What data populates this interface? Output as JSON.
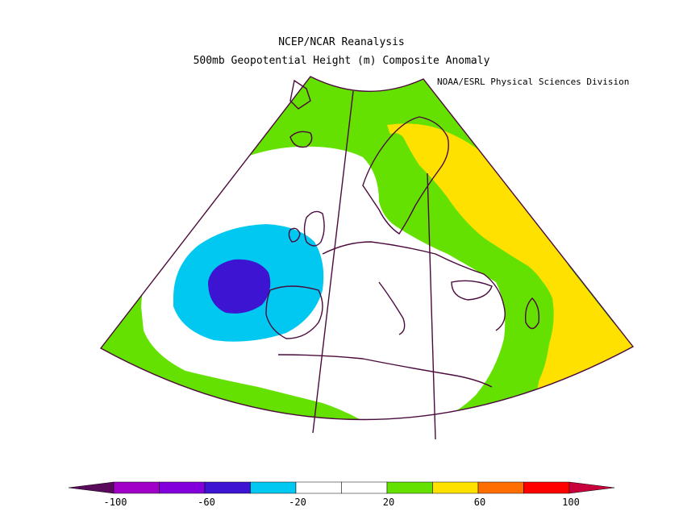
{
  "title": {
    "line1": "NCEP/NCAR Reanalysis",
    "line2": "500mb Geopotential Height (m) Composite Anomaly",
    "credit": "NOAA/ESRL Physical Sciences Division"
  },
  "colors": {
    "band_m100_m80": "#a000c8",
    "band_m80_m60": "#8200dc",
    "band_m60_m40": "#3c14d2",
    "band_m40_m20": "#00c8f0",
    "band_m20_0": "#ffffff",
    "band_0_20": "#ffffff",
    "band_20_40": "#64e100",
    "band_40_60": "#ffe100",
    "band_60_80": "#ff6e00",
    "band_80_100": "#ff0000",
    "under": "#5a0a5a",
    "over": "#c8003c",
    "coastline": "#4b0a3c"
  },
  "colorbar": {
    "tick_labels": [
      "-100",
      "-60",
      "-20",
      "20",
      "60",
      "100"
    ],
    "tick_values": [
      -100,
      -60,
      -20,
      20,
      60,
      100
    ]
  }
}
